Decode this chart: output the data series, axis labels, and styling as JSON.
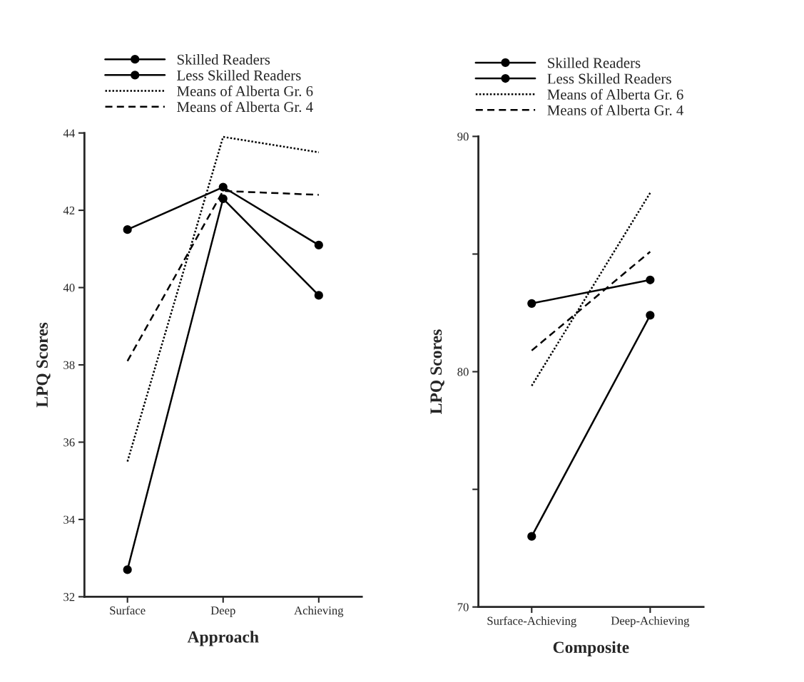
{
  "chart_data": [
    {
      "type": "line",
      "xlabel": "Approach",
      "ylabel": "LPQ Scores",
      "categories": [
        "Surface",
        "Deep",
        "Achieving"
      ],
      "ylim": [
        32,
        44
      ],
      "yticks": [
        32,
        34,
        36,
        38,
        40,
        42,
        44
      ],
      "grid": false,
      "legend": "top",
      "series": [
        {
          "name": "Skilled Readers",
          "color": "#000000",
          "marker": "circle",
          "line_style": "solid",
          "values": [
            32.7,
            42.3,
            39.8
          ]
        },
        {
          "name": "Less Skilled Readers",
          "color": "#000000",
          "marker": "circle",
          "line_style": "solid",
          "values": [
            41.5,
            42.6,
            41.1
          ]
        },
        {
          "name": "Means of Alberta Gr. 6",
          "color": "#000000",
          "marker": "none",
          "line_style": "dotted",
          "values": [
            35.5,
            43.9,
            43.5
          ]
        },
        {
          "name": "Means of Alberta Gr. 4",
          "color": "#000000",
          "marker": "none",
          "line_style": "dashed",
          "values": [
            38.1,
            42.5,
            42.4
          ]
        }
      ]
    },
    {
      "type": "line",
      "xlabel": "Composite",
      "ylabel": "LPQ Scores",
      "categories": [
        "Surface-Achieving",
        "Deep-Achieving"
      ],
      "ylim": [
        70,
        90
      ],
      "yticks": [
        70,
        {
          "value": 75,
          "label": null
        },
        80,
        {
          "value": 85,
          "label": null
        },
        90
      ],
      "grid": false,
      "legend": "top",
      "series": [
        {
          "name": "Skilled Readers",
          "color": "#000000",
          "marker": "circle",
          "line_style": "solid",
          "values": [
            73.0,
            82.4
          ]
        },
        {
          "name": "Less Skilled Readers",
          "color": "#000000",
          "marker": "circle",
          "line_style": "solid",
          "values": [
            82.9,
            83.9
          ]
        },
        {
          "name": "Means of Alberta Gr. 6",
          "color": "#000000",
          "marker": "none",
          "line_style": "dotted",
          "values": [
            79.4,
            87.6
          ]
        },
        {
          "name": "Means of Alberta Gr. 4",
          "color": "#000000",
          "marker": "none",
          "line_style": "dashed",
          "values": [
            80.9,
            85.1
          ]
        }
      ]
    }
  ]
}
